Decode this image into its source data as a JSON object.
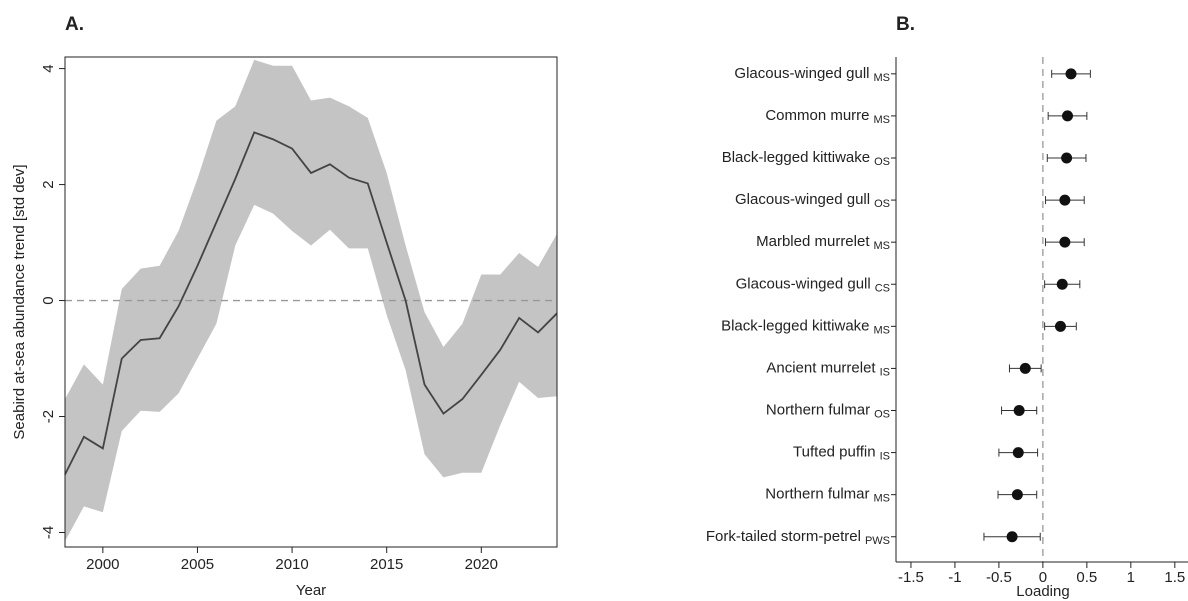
{
  "chart_data": [
    {
      "type": "line",
      "title": "A.",
      "x_label": "Year",
      "y_label": "Seabird at-sea abundance trend [std dev]",
      "x": [
        1998,
        1999,
        2000,
        2001,
        2002,
        2003,
        2004,
        2005,
        2006,
        2007,
        2008,
        2009,
        2010,
        2011,
        2012,
        2013,
        2014,
        2015,
        2016,
        2017,
        2018,
        2019,
        2020,
        2021,
        2022,
        2023,
        2024
      ],
      "series": [
        {
          "name": "trend",
          "color": "#444444",
          "values": [
            -3.0,
            -2.35,
            -2.55,
            -1.0,
            -0.68,
            -0.65,
            -0.1,
            0.6,
            1.35,
            2.1,
            2.9,
            2.78,
            2.62,
            2.2,
            2.35,
            2.12,
            2.02,
            1.0,
            0.0,
            -1.45,
            -1.95,
            -1.7,
            -1.28,
            -0.85,
            -0.3,
            -0.55,
            -0.22
          ],
          "upper": [
            -1.7,
            -1.1,
            -1.45,
            0.2,
            0.55,
            0.6,
            1.2,
            2.1,
            3.1,
            3.35,
            4.15,
            4.05,
            4.05,
            3.45,
            3.5,
            3.35,
            3.15,
            2.2,
            0.95,
            -0.2,
            -0.8,
            -0.4,
            0.45,
            0.45,
            0.82,
            0.58,
            1.15
          ],
          "lower": [
            -4.15,
            -3.55,
            -3.65,
            -2.25,
            -1.9,
            -1.92,
            -1.6,
            -1.0,
            -0.4,
            0.95,
            1.65,
            1.5,
            1.2,
            0.95,
            1.22,
            0.9,
            0.9,
            -0.25,
            -1.2,
            -2.65,
            -3.05,
            -2.97,
            -2.97,
            -2.15,
            -1.4,
            -1.68,
            -1.65
          ],
          "band_color": "#c4c4c4"
        }
      ],
      "xlim": [
        1998,
        2024
      ],
      "xticks": [
        2000,
        2005,
        2010,
        2015,
        2020
      ],
      "ylim": [
        -4.25,
        4.2
      ],
      "yticks": [
        -4,
        -2,
        0,
        2,
        4
      ],
      "reference_line": 0
    },
    {
      "type": "dot",
      "title": "B.",
      "x_label": "Loading",
      "categories": [
        "Glacous-winged gull",
        "Common murre",
        "Black-legged kittiwake",
        "Glacous-winged gull",
        "Marbled murrelet",
        "Glacous-winged gull",
        "Black-legged kittiwake",
        "Ancient murrelet",
        "Northern fulmar",
        "Tufted puffin",
        "Northern fulmar",
        "Fork-tailed storm-petrel"
      ],
      "category_subscripts": [
        "MS",
        "MS",
        "OS",
        "OS",
        "MS",
        "CS",
        "MS",
        "IS",
        "OS",
        "IS",
        "MS",
        "PWS"
      ],
      "values": [
        0.32,
        0.28,
        0.27,
        0.25,
        0.25,
        0.22,
        0.2,
        -0.2,
        -0.27,
        -0.28,
        -0.29,
        -0.35
      ],
      "errors": [
        0.22,
        0.22,
        0.22,
        0.22,
        0.22,
        0.2,
        0.18,
        0.18,
        0.2,
        0.22,
        0.22,
        0.32
      ],
      "color": "#111111",
      "xlim": [
        -1.67,
        1.65
      ],
      "xticks": [
        -1.5,
        -1,
        -0.5,
        0,
        0.5,
        1,
        1.5
      ],
      "reference_line": 0
    }
  ]
}
